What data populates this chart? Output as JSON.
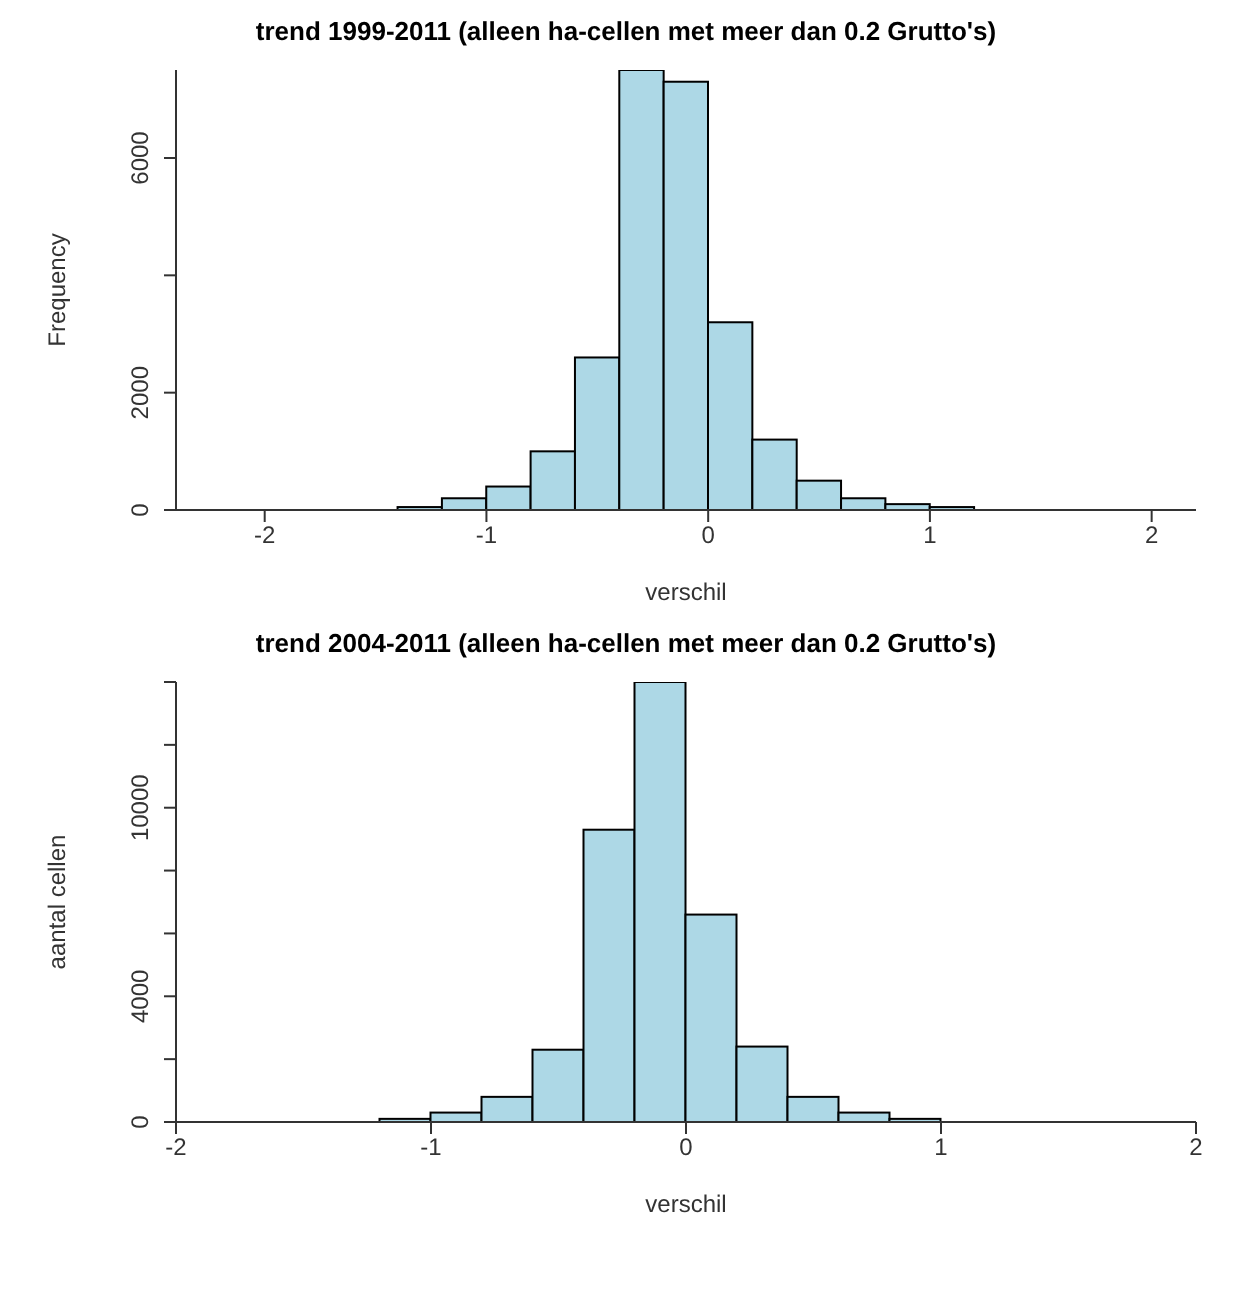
{
  "chart_data": [
    {
      "type": "histogram",
      "title": "trend 1999-2011 (alleen ha-cellen met meer dan 0.2 Grutto's)",
      "xlabel": "verschil",
      "ylabel": "Frequency",
      "color": "#add8e6",
      "bins": [
        -2.4,
        -2.2,
        -2.0,
        -1.8,
        -1.6,
        -1.4,
        -1.2,
        -1.0,
        -0.8,
        -0.6,
        -0.4,
        -0.2,
        0,
        0.2,
        0.4,
        0.6,
        0.8,
        1.0,
        1.2,
        1.4,
        1.6,
        1.8,
        2.0,
        2.2
      ],
      "values": [
        0,
        0,
        0,
        0,
        0,
        50,
        200,
        400,
        1000,
        2600,
        7500,
        7300,
        3200,
        1200,
        500,
        200,
        100,
        50,
        0,
        0,
        0,
        0,
        0
      ],
      "xlim": [
        -2.4,
        2.2
      ],
      "xticks": [
        -2,
        -1,
        0,
        1,
        2
      ],
      "ylim": [
        0,
        7500
      ],
      "yticks": [
        0,
        2000,
        {
          "value": 4000,
          "label": null
        },
        6000
      ],
      "grid": false
    },
    {
      "type": "histogram",
      "title": "trend 2004-2011 (alleen ha-cellen met meer dan 0.2 Grutto's)",
      "xlabel": "verschil",
      "ylabel": "aantal cellen",
      "color": "#add8e6",
      "bins": [
        -2.0,
        -1.8,
        -1.6,
        -1.4,
        -1.2,
        -1.0,
        -0.8,
        -0.6,
        -0.4,
        -0.2,
        0,
        0.2,
        0.4,
        0.6,
        0.8,
        1.0,
        1.2,
        1.4,
        1.6,
        1.8,
        2.0
      ],
      "values": [
        0,
        0,
        0,
        0,
        100,
        300,
        800,
        2300,
        9300,
        14000,
        6600,
        2400,
        800,
        300,
        100,
        0,
        0,
        0,
        0,
        0
      ],
      "xlim": [
        -2,
        2
      ],
      "xticks": [
        -2,
        -1,
        0,
        1,
        2
      ],
      "ylim": [
        0,
        14000
      ],
      "yticks": [
        0,
        {
          "value": 2000,
          "label": null
        },
        4000,
        {
          "value": 6000,
          "label": null
        },
        {
          "value": 8000,
          "label": null
        },
        10000,
        {
          "value": 12000,
          "label": null
        },
        {
          "value": 14000,
          "label": null
        }
      ],
      "grid": false
    }
  ]
}
